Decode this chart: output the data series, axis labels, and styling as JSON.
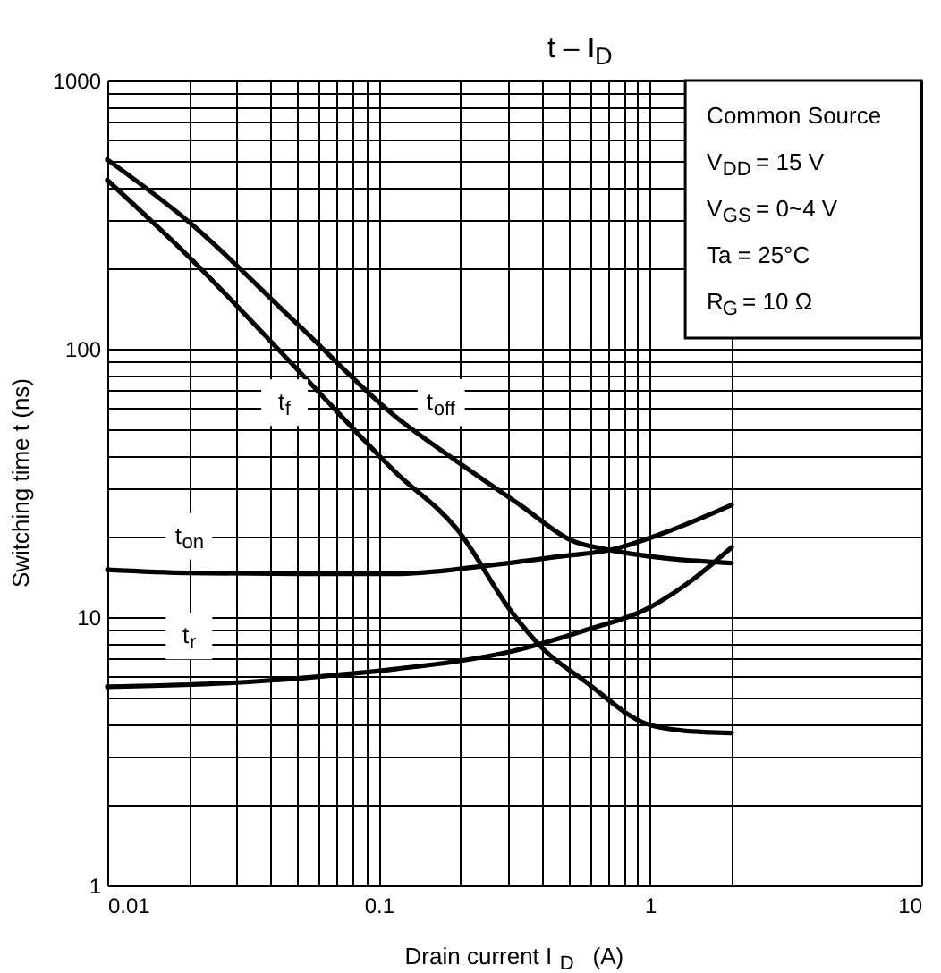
{
  "chart_data": {
    "type": "line",
    "title": "t – I$_{D}$",
    "xlabel": "Drain current   I$_{D}$   (A)",
    "ylabel": "Switching time   t   (ns)",
    "log": "xy",
    "xlim": [
      0.01,
      10
    ],
    "ylim": [
      1,
      1000
    ],
    "xticks": [
      0.01,
      {
        "value": 0.02,
        "label": null
      },
      {
        "value": 0.03,
        "label": null
      },
      {
        "value": 0.04,
        "label": null
      },
      {
        "value": 0.05,
        "label": null
      },
      {
        "value": 0.06,
        "label": null
      },
      {
        "value": 0.07,
        "label": null
      },
      {
        "value": 0.08,
        "label": null
      },
      {
        "value": 0.09,
        "label": null
      },
      0.1,
      {
        "value": 0.2,
        "label": null
      },
      {
        "value": 0.3,
        "label": null
      },
      {
        "value": 0.4,
        "label": null
      },
      {
        "value": 0.5,
        "label": null
      },
      {
        "value": 0.6,
        "label": null
      },
      {
        "value": 0.7,
        "label": null
      },
      {
        "value": 0.8,
        "label": null
      },
      {
        "value": 0.9,
        "label": null
      },
      1,
      {
        "value": 2,
        "label": null
      },
      10
    ],
    "yticks": [
      1,
      {
        "value": 2,
        "label": null
      },
      {
        "value": 3,
        "label": null
      },
      {
        "value": 4,
        "label": null
      },
      {
        "value": 5,
        "label": null
      },
      {
        "value": 6,
        "label": null
      },
      {
        "value": 7,
        "label": null
      },
      {
        "value": 8,
        "label": null
      },
      {
        "value": 9,
        "label": null
      },
      10,
      {
        "value": 20,
        "label": null
      },
      {
        "value": 30,
        "label": null
      },
      {
        "value": 40,
        "label": null
      },
      {
        "value": 50,
        "label": null
      },
      {
        "value": 60,
        "label": null
      },
      {
        "value": 70,
        "label": null
      },
      {
        "value": 80,
        "label": null
      },
      {
        "value": 90,
        "label": null
      },
      100,
      {
        "value": 200,
        "label": null
      },
      {
        "value": 300,
        "label": null
      },
      {
        "value": 400,
        "label": null
      },
      {
        "value": 500,
        "label": null
      },
      {
        "value": 600,
        "label": null
      },
      {
        "value": 700,
        "label": null
      },
      {
        "value": 800,
        "label": null
      },
      {
        "value": 900,
        "label": null
      },
      1000
    ],
    "grid": true,
    "line_style": "solid",
    "series": [
      {
        "color": "#000000",
        "x": [
          0.01,
          0.02,
          0.05,
          0.115,
          0.197,
          0.335,
          0.514,
          0.707,
          1.27,
          2
        ],
        "values": [
          507,
          297,
          124,
          56,
          37.7,
          26,
          19.3,
          17.8,
          16.4,
          15.9
        ]
      },
      {
        "color": "#000000",
        "x": [
          0.01,
          0.02,
          0.05,
          0.115,
          0.197,
          0.31,
          0.404,
          0.571,
          0.97,
          1.34,
          2
        ],
        "values": [
          425,
          220,
          84,
          34.8,
          20.9,
          10.4,
          7.6,
          5.8,
          4.0,
          3.77,
          3.7
        ]
      },
      {
        "color": "#000000",
        "x": [
          0.01,
          0.02,
          0.05,
          0.115,
          0.257,
          0.438,
          0.746,
          1.14,
          2
        ],
        "values": [
          15,
          14.6,
          14.5,
          14.5,
          15.6,
          16.7,
          18.0,
          20.7,
          26.2
        ]
      },
      {
        "color": "#000000",
        "x": [
          0.01,
          0.03,
          0.06,
          0.115,
          0.3,
          0.571,
          0.97,
          1.41,
          2
        ],
        "values": [
          5.5,
          5.7,
          6.0,
          6.4,
          7.4,
          8.9,
          10.7,
          13.6,
          18.2
        ]
      }
    ],
    "annotations": [
      {
        "text": "t$_{off}$",
        "x": 0.17,
        "y": 63
      },
      {
        "text": "t$_{f}$",
        "x": 0.045,
        "y": 63
      },
      {
        "text": "t$_{on}$",
        "x": 0.02,
        "y": 20
      },
      {
        "text": "t$_{r}$",
        "x": 0.02,
        "y": 8.5
      },
      "Common Source",
      "V$_{DD}$ = 15 V",
      "V$_{GS}$ = 0~4 V",
      "Ta = 25°C",
      "R$_{G}$ = 10 Ω"
    ]
  }
}
